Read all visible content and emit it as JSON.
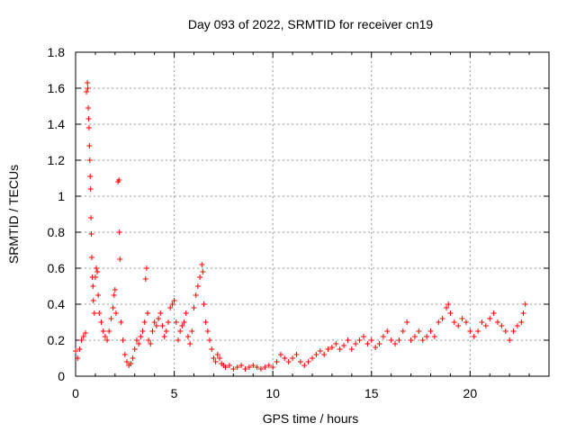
{
  "chart_data": {
    "type": "scatter",
    "title": "Day 093 of 2022, SRMTID for receiver cn19",
    "xlabel": "GPS time / hours",
    "ylabel": "SRMTID / TECUs",
    "xlim": [
      0,
      24
    ],
    "ylim": [
      0,
      1.8
    ],
    "xticks": [
      0,
      5,
      10,
      15,
      20
    ],
    "xtick_labels": [
      "0",
      "5",
      "10",
      "15",
      "20"
    ],
    "yticks": [
      0,
      0.2,
      0.4,
      0.6,
      0.8,
      1,
      1.2,
      1.4,
      1.6,
      1.8
    ],
    "ytick_labels": [
      "0",
      "0.2",
      "0.4",
      "0.6",
      "0.8",
      "1",
      "1.2",
      "1.4",
      "1.6",
      "1.8"
    ],
    "grid": true,
    "marker": "+",
    "color": "#ff0000",
    "series": [
      {
        "name": "SRMTID",
        "points": [
          [
            0.0,
            0.14
          ],
          [
            0.1,
            0.1
          ],
          [
            0.2,
            0.15
          ],
          [
            0.3,
            0.2
          ],
          [
            0.4,
            0.22
          ],
          [
            0.5,
            0.24
          ],
          [
            0.55,
            1.58
          ],
          [
            0.6,
            1.63
          ],
          [
            0.62,
            1.6
          ],
          [
            0.64,
            1.49
          ],
          [
            0.66,
            1.43
          ],
          [
            0.68,
            1.38
          ],
          [
            0.7,
            1.28
          ],
          [
            0.72,
            1.2
          ],
          [
            0.74,
            1.11
          ],
          [
            0.76,
            1.04
          ],
          [
            0.78,
            0.88
          ],
          [
            0.8,
            0.79
          ],
          [
            0.82,
            0.66
          ],
          [
            0.85,
            0.55
          ],
          [
            0.88,
            0.5
          ],
          [
            0.9,
            0.42
          ],
          [
            0.95,
            0.35
          ],
          [
            1.0,
            0.55
          ],
          [
            1.05,
            0.6
          ],
          [
            1.1,
            0.58
          ],
          [
            1.15,
            0.45
          ],
          [
            1.2,
            0.35
          ],
          [
            1.3,
            0.3
          ],
          [
            1.4,
            0.25
          ],
          [
            1.5,
            0.22
          ],
          [
            1.6,
            0.2
          ],
          [
            1.7,
            0.25
          ],
          [
            1.8,
            0.32
          ],
          [
            1.9,
            0.38
          ],
          [
            1.95,
            0.45
          ],
          [
            2.0,
            0.48
          ],
          [
            2.05,
            0.35
          ],
          [
            2.15,
            1.08
          ],
          [
            2.2,
            1.09
          ],
          [
            2.22,
            0.8
          ],
          [
            2.25,
            0.65
          ],
          [
            2.3,
            0.3
          ],
          [
            2.4,
            0.2
          ],
          [
            2.5,
            0.12
          ],
          [
            2.6,
            0.08
          ],
          [
            2.7,
            0.06
          ],
          [
            2.8,
            0.07
          ],
          [
            2.9,
            0.1
          ],
          [
            3.0,
            0.15
          ],
          [
            3.1,
            0.2
          ],
          [
            3.2,
            0.18
          ],
          [
            3.3,
            0.22
          ],
          [
            3.4,
            0.25
          ],
          [
            3.5,
            0.3
          ],
          [
            3.55,
            0.54
          ],
          [
            3.6,
            0.6
          ],
          [
            3.65,
            0.35
          ],
          [
            3.7,
            0.2
          ],
          [
            3.8,
            0.18
          ],
          [
            3.9,
            0.25
          ],
          [
            4.0,
            0.3
          ],
          [
            4.1,
            0.28
          ],
          [
            4.2,
            0.32
          ],
          [
            4.3,
            0.35
          ],
          [
            4.4,
            0.28
          ],
          [
            4.5,
            0.22
          ],
          [
            4.6,
            0.25
          ],
          [
            4.7,
            0.3
          ],
          [
            4.8,
            0.38
          ],
          [
            4.9,
            0.4
          ],
          [
            5.0,
            0.42
          ],
          [
            5.1,
            0.3
          ],
          [
            5.2,
            0.2
          ],
          [
            5.3,
            0.25
          ],
          [
            5.4,
            0.28
          ],
          [
            5.5,
            0.3
          ],
          [
            5.6,
            0.35
          ],
          [
            5.7,
            0.22
          ],
          [
            5.8,
            0.18
          ],
          [
            5.9,
            0.25
          ],
          [
            6.0,
            0.38
          ],
          [
            6.1,
            0.45
          ],
          [
            6.2,
            0.5
          ],
          [
            6.3,
            0.55
          ],
          [
            6.4,
            0.62
          ],
          [
            6.45,
            0.58
          ],
          [
            6.5,
            0.4
          ],
          [
            6.6,
            0.3
          ],
          [
            6.7,
            0.25
          ],
          [
            6.8,
            0.2
          ],
          [
            6.9,
            0.15
          ],
          [
            7.0,
            0.1
          ],
          [
            7.1,
            0.08
          ],
          [
            7.2,
            0.12
          ],
          [
            7.3,
            0.1
          ],
          [
            7.4,
            0.07
          ],
          [
            7.5,
            0.06
          ],
          [
            7.6,
            0.05
          ],
          [
            7.8,
            0.06
          ],
          [
            8.0,
            0.04
          ],
          [
            8.2,
            0.05
          ],
          [
            8.4,
            0.06
          ],
          [
            8.6,
            0.04
          ],
          [
            8.8,
            0.05
          ],
          [
            9.0,
            0.06
          ],
          [
            9.2,
            0.05
          ],
          [
            9.4,
            0.04
          ],
          [
            9.6,
            0.05
          ],
          [
            9.8,
            0.06
          ],
          [
            10.0,
            0.05
          ],
          [
            10.2,
            0.08
          ],
          [
            10.4,
            0.12
          ],
          [
            10.6,
            0.1
          ],
          [
            10.8,
            0.08
          ],
          [
            11.0,
            0.1
          ],
          [
            11.2,
            0.12
          ],
          [
            11.4,
            0.08
          ],
          [
            11.6,
            0.06
          ],
          [
            11.8,
            0.08
          ],
          [
            12.0,
            0.1
          ],
          [
            12.2,
            0.12
          ],
          [
            12.4,
            0.14
          ],
          [
            12.6,
            0.12
          ],
          [
            12.8,
            0.15
          ],
          [
            13.0,
            0.16
          ],
          [
            13.2,
            0.18
          ],
          [
            13.4,
            0.15
          ],
          [
            13.6,
            0.17
          ],
          [
            13.8,
            0.2
          ],
          [
            14.0,
            0.15
          ],
          [
            14.2,
            0.18
          ],
          [
            14.4,
            0.2
          ],
          [
            14.6,
            0.22
          ],
          [
            14.8,
            0.18
          ],
          [
            15.0,
            0.2
          ],
          [
            15.2,
            0.16
          ],
          [
            15.4,
            0.18
          ],
          [
            15.6,
            0.22
          ],
          [
            15.8,
            0.25
          ],
          [
            16.0,
            0.2
          ],
          [
            16.2,
            0.18
          ],
          [
            16.4,
            0.2
          ],
          [
            16.6,
            0.25
          ],
          [
            16.8,
            0.3
          ],
          [
            17.0,
            0.2
          ],
          [
            17.2,
            0.22
          ],
          [
            17.4,
            0.25
          ],
          [
            17.6,
            0.2
          ],
          [
            17.8,
            0.22
          ],
          [
            18.0,
            0.25
          ],
          [
            18.2,
            0.22
          ],
          [
            18.4,
            0.3
          ],
          [
            18.6,
            0.32
          ],
          [
            18.8,
            0.38
          ],
          [
            18.9,
            0.4
          ],
          [
            19.0,
            0.35
          ],
          [
            19.2,
            0.3
          ],
          [
            19.4,
            0.28
          ],
          [
            19.6,
            0.32
          ],
          [
            19.8,
            0.3
          ],
          [
            20.0,
            0.25
          ],
          [
            20.2,
            0.22
          ],
          [
            20.4,
            0.25
          ],
          [
            20.6,
            0.3
          ],
          [
            20.8,
            0.28
          ],
          [
            21.0,
            0.32
          ],
          [
            21.2,
            0.35
          ],
          [
            21.4,
            0.3
          ],
          [
            21.6,
            0.28
          ],
          [
            21.8,
            0.25
          ],
          [
            22.0,
            0.2
          ],
          [
            22.2,
            0.25
          ],
          [
            22.4,
            0.28
          ],
          [
            22.6,
            0.3
          ],
          [
            22.7,
            0.35
          ],
          [
            22.8,
            0.4
          ]
        ]
      }
    ]
  }
}
